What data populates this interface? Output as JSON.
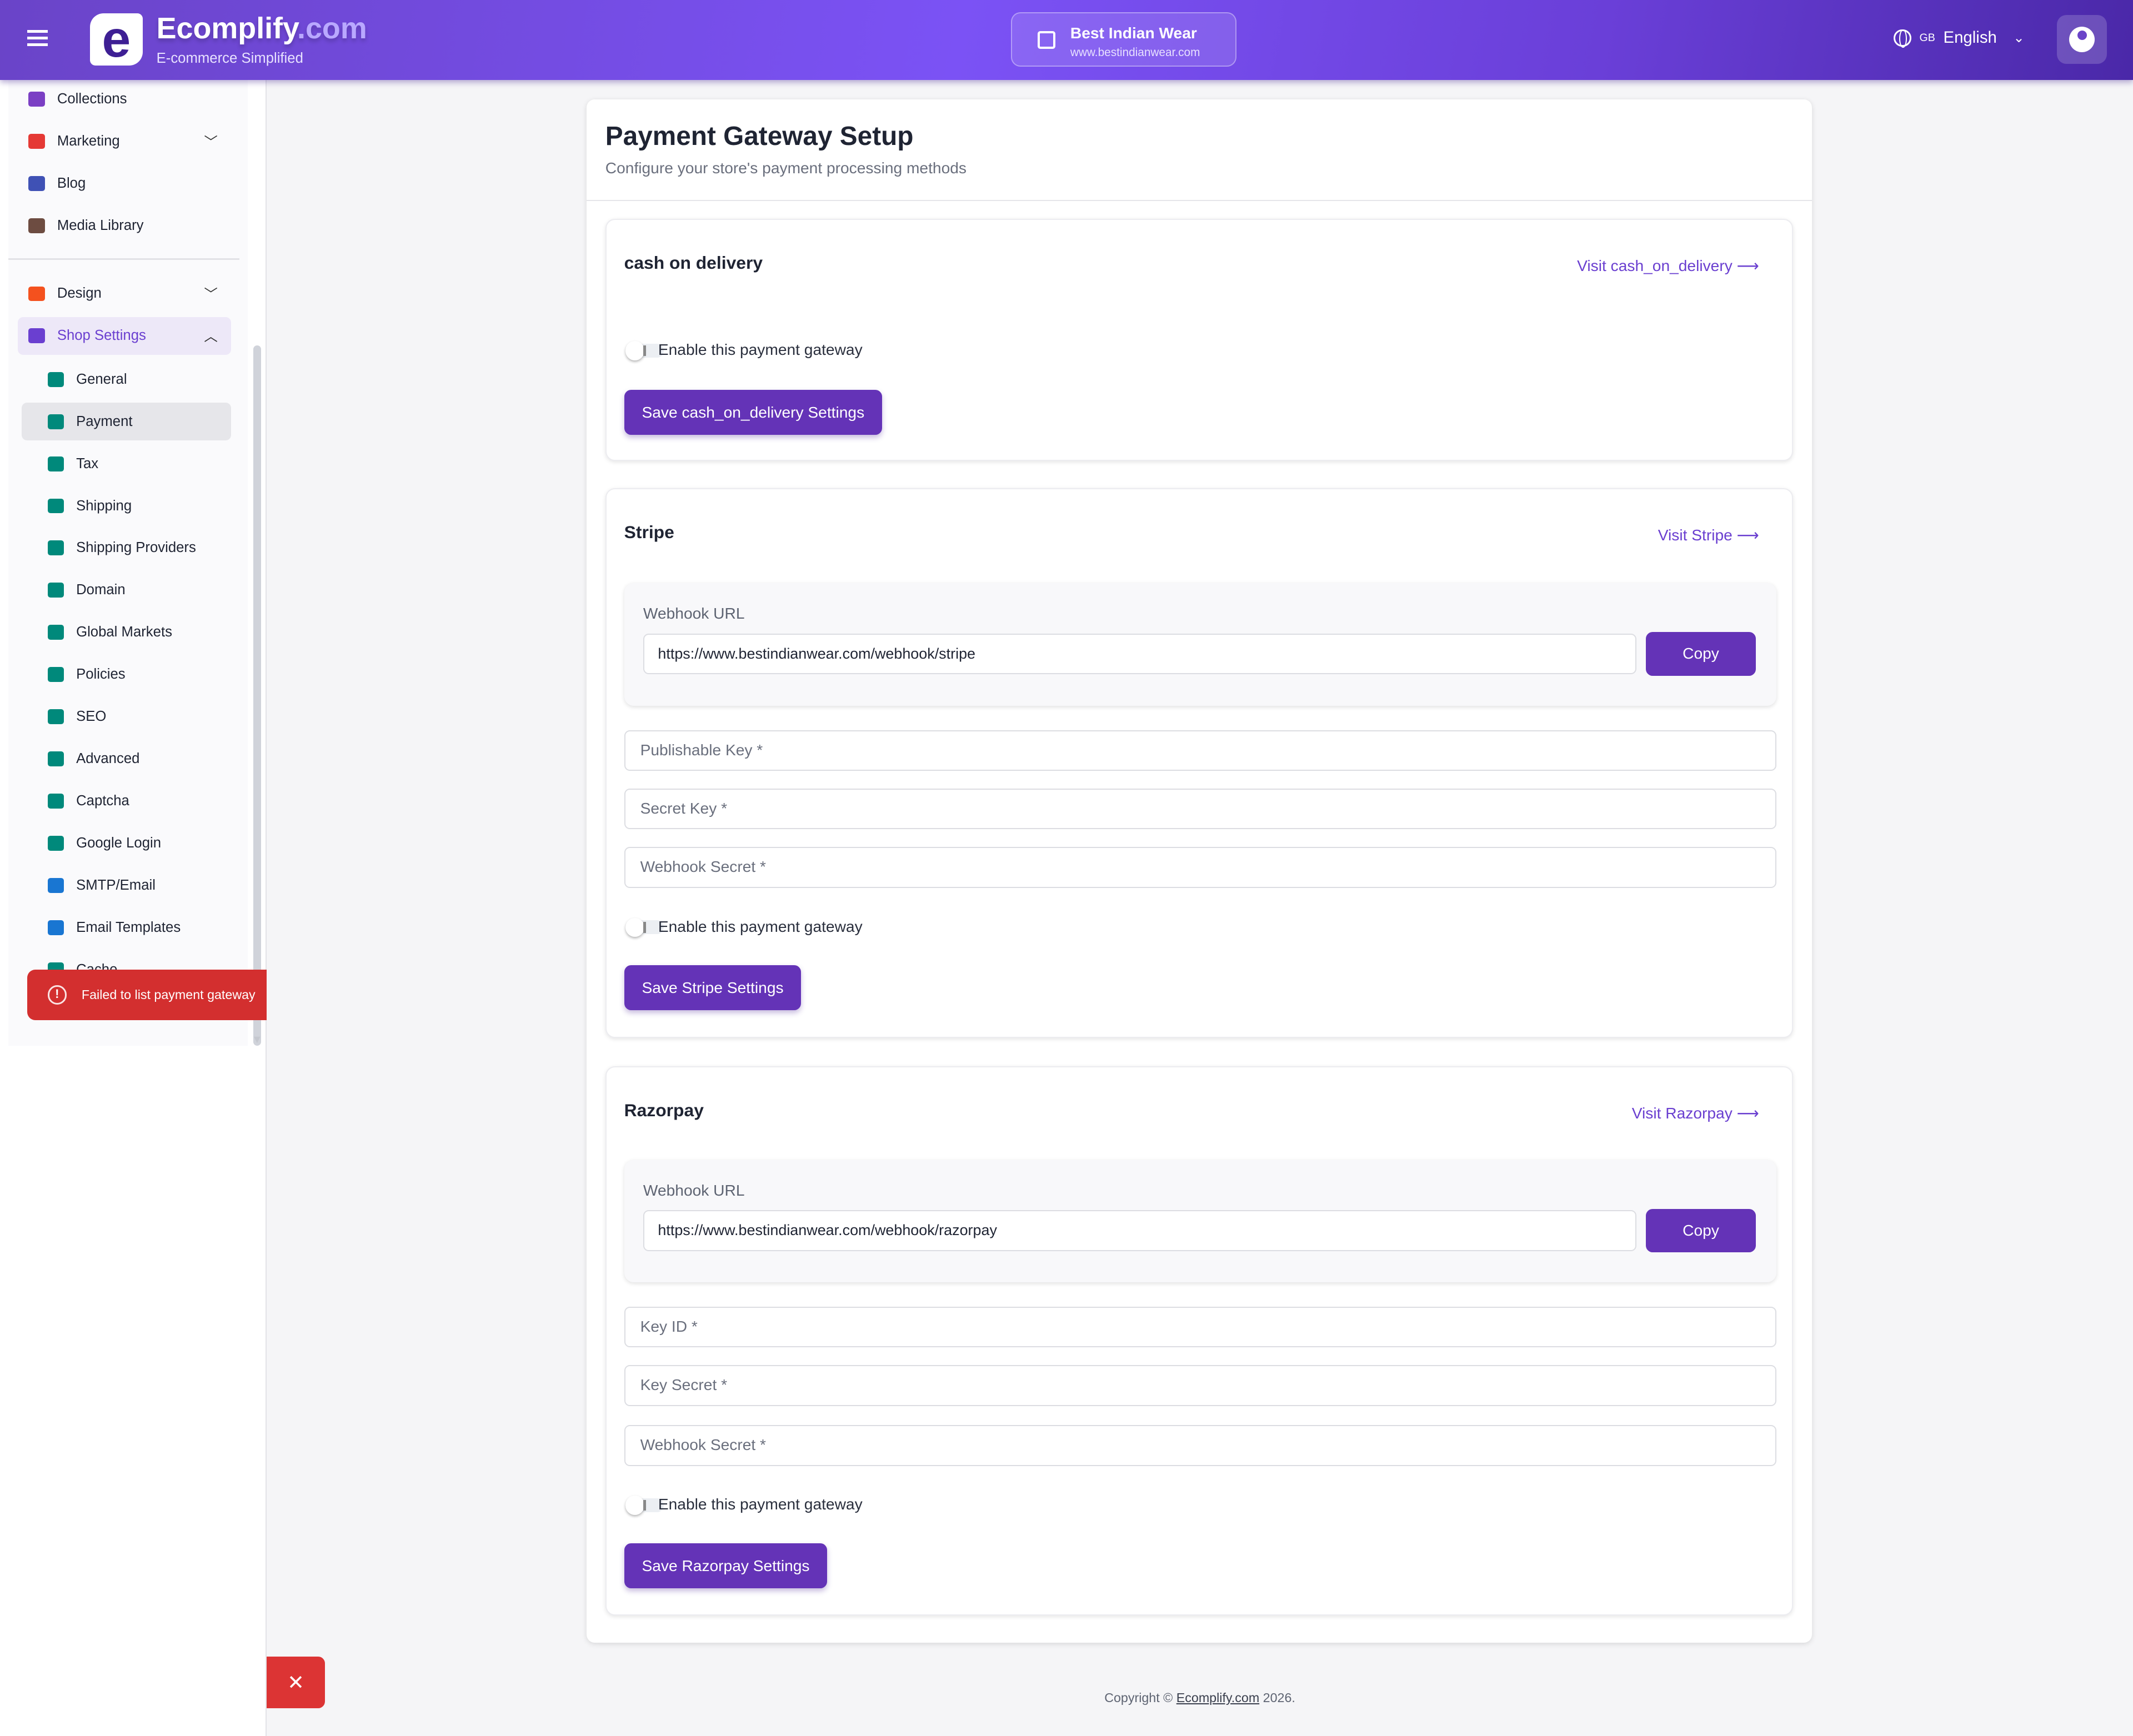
{
  "header": {
    "brand_main": "Ecomplify",
    "brand_suffix": ".com",
    "tagline": "E-commerce Simplified",
    "logo_letter": "e",
    "store_name": "Best Indian Wear",
    "store_url": "www.bestindianwear.com",
    "language_flag": "GB",
    "language": "English"
  },
  "sidebar": {
    "items": [
      {
        "label": "Collections",
        "icon": "collections-icon",
        "color": "#7b3fc4"
      },
      {
        "label": "Marketing",
        "icon": "megaphone-icon",
        "color": "#e53935",
        "chevron": "down"
      },
      {
        "label": "Blog",
        "icon": "blog-icon",
        "color": "#3f51b5"
      },
      {
        "label": "Media Library",
        "icon": "image-icon",
        "color": "#6d4c41"
      },
      {
        "label": "Design",
        "icon": "palette-icon",
        "color": "#f4511e",
        "chevron": "down"
      },
      {
        "label": "Shop Settings",
        "icon": "store-icon",
        "color": "#6a3fd0",
        "chevron": "up"
      }
    ],
    "sub_items": [
      {
        "label": "General",
        "icon": "pencil-icon",
        "color": "#00897b"
      },
      {
        "label": "Payment",
        "icon": "credit-card-icon",
        "color": "#00897b"
      },
      {
        "label": "Tax",
        "icon": "receipt-icon",
        "color": "#00897b"
      },
      {
        "label": "Shipping",
        "icon": "truck-icon",
        "color": "#00897b"
      },
      {
        "label": "Shipping Providers",
        "icon": "truck-icon",
        "color": "#00897b"
      },
      {
        "label": "Domain",
        "icon": "globe-icon",
        "color": "#00897b"
      },
      {
        "label": "Global Markets",
        "icon": "shopping-bag-icon",
        "color": "#00897b"
      },
      {
        "label": "Policies",
        "icon": "gavel-icon",
        "color": "#00897b"
      },
      {
        "label": "SEO",
        "icon": "search-icon",
        "color": "#00897b"
      },
      {
        "label": "Advanced",
        "icon": "gear-icon",
        "color": "#00897b"
      },
      {
        "label": "Captcha",
        "icon": "robot-icon",
        "color": "#00897b"
      },
      {
        "label": "Google Login",
        "icon": "link-icon",
        "color": "#00897b"
      },
      {
        "label": "SMTP/Email",
        "icon": "mail-icon",
        "color": "#1976d2"
      },
      {
        "label": "Email Templates",
        "icon": "mail-icon",
        "color": "#1976d2"
      },
      {
        "label": "Cache",
        "icon": "refresh-icon",
        "color": "#00897b"
      }
    ]
  },
  "toast": {
    "message": "Failed to list payment gateway"
  },
  "page": {
    "title": "Payment Gateway Setup",
    "subtitle": "Configure your store's payment processing methods"
  },
  "gateways": [
    {
      "name": "cash on delivery",
      "visit": "Visit cash_on_delivery",
      "enable_label": "Enable this payment gateway",
      "enabled": false,
      "save": "Save cash_on_delivery Settings"
    },
    {
      "name": "Stripe",
      "visit": "Visit Stripe",
      "webhook_label": "Webhook URL",
      "webhook_url": "https://www.bestindianwear.com/webhook/stripe",
      "copy": "Copy",
      "fields": [
        "Publishable Key *",
        "Secret Key *",
        "Webhook Secret *"
      ],
      "enable_label": "Enable this payment gateway",
      "enabled": false,
      "save": "Save Stripe Settings"
    },
    {
      "name": "Razorpay",
      "visit": "Visit Razorpay",
      "webhook_label": "Webhook URL",
      "webhook_url": "https://www.bestindianwear.com/webhook/razorpay",
      "copy": "Copy",
      "fields": [
        "Key ID *",
        "Key Secret *",
        "Webhook Secret *"
      ],
      "enable_label": "Enable this payment gateway",
      "enabled": false,
      "save": "Save Razorpay Settings"
    }
  ],
  "footer": {
    "prefix": "Copyright © ",
    "link": "Ecomplify.com",
    "suffix": " 2026."
  },
  "colors": {
    "accent": "#6433b7",
    "error": "#d32f2f"
  }
}
